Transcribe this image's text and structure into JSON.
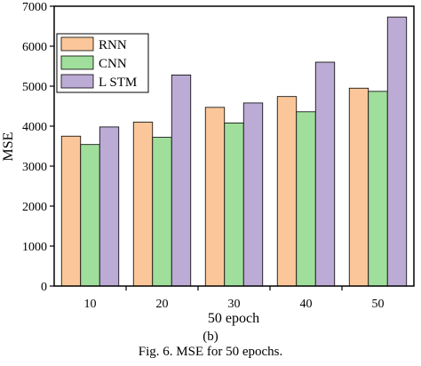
{
  "chart_data": {
    "type": "bar",
    "categories": [
      "10",
      "20",
      "30",
      "40",
      "50"
    ],
    "series": [
      {
        "name": "RNN",
        "values": [
          3750,
          4100,
          4470,
          4740,
          4950
        ]
      },
      {
        "name": "CNN",
        "values": [
          3540,
          3720,
          4080,
          4360,
          4870
        ]
      },
      {
        "name": "L STM",
        "values": [
          3980,
          5280,
          4580,
          5600,
          6730
        ]
      }
    ],
    "colors": [
      "#fbc79a",
      "#9fde9b",
      "#bcabd4"
    ],
    "xlabel": "50 epoch",
    "ylabel": "MSE",
    "ylim": [
      0,
      7000
    ],
    "yticks": [
      "0",
      "1000",
      "2000",
      "3000",
      "4000",
      "5000",
      "6000",
      "7000"
    ],
    "grid": false,
    "legend_position": "top-left"
  },
  "captions": {
    "sub": "(b)",
    "figure": "Fig. 6. MSE for 50 epochs."
  }
}
